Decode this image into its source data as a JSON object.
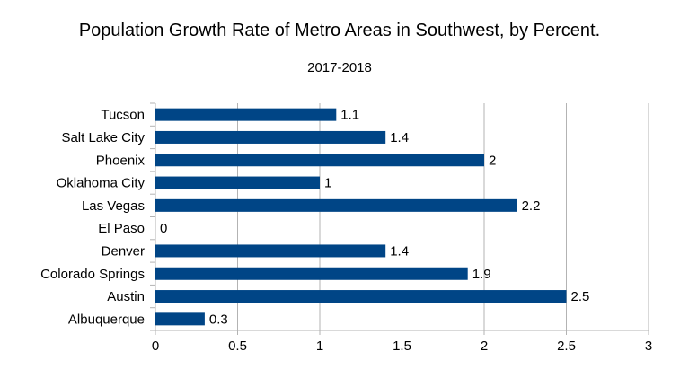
{
  "chart_data": {
    "type": "bar",
    "orientation": "horizontal",
    "title": "Population Growth Rate of Metro Areas in Southwest, by Percent.",
    "subtitle": "2017-2018",
    "categories": [
      "Tucson",
      "Salt Lake City",
      "Phoenix",
      "Oklahoma City",
      "Las Vegas",
      "El Paso",
      "Denver",
      "Colorado Springs",
      "Austin",
      "Albuquerque"
    ],
    "values": [
      1.1,
      1.4,
      2,
      1,
      2.2,
      0,
      1.4,
      1.9,
      2.5,
      0.3
    ],
    "xlim": [
      0,
      3
    ],
    "xticks": [
      "0",
      "0.5",
      "1",
      "1.5",
      "2",
      "2.5",
      "3"
    ],
    "grid": true,
    "data_labels": true,
    "bar_color": "#004586",
    "legend": "none"
  }
}
